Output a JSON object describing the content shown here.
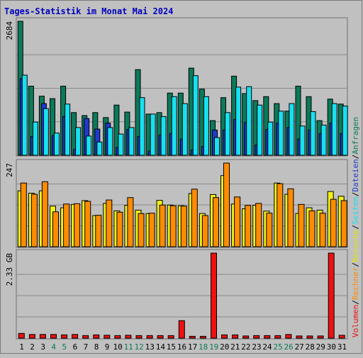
{
  "chart_data": {
    "type": "bar",
    "title": "Tages-Statistik im Monat Mai 2024",
    "x": [
      "1",
      "2",
      "3",
      "4",
      "5",
      "6",
      "7",
      "8",
      "9",
      "10",
      "11",
      "12",
      "13",
      "14",
      "15",
      "16",
      "17",
      "18",
      "19",
      "20",
      "21",
      "22",
      "23",
      "24",
      "25",
      "26",
      "27",
      "28",
      "29",
      "30",
      "31"
    ],
    "weekend_days": [
      "4",
      "5",
      "11",
      "12",
      "18",
      "19",
      "25",
      "26"
    ],
    "panels": [
      {
        "name": "requests",
        "max_label": "2684",
        "ylim": [
          0,
          2684
        ],
        "grid": true,
        "series": [
          {
            "name": "Anfragen",
            "color": "#0b7a5a",
            "values": [
              2684,
              1385,
              1185,
              1135,
              1385,
              855,
              795,
              855,
              755,
              1005,
              865,
              1715,
              825,
              855,
              1245,
              1245,
              1745,
              1325,
              695,
              1155,
              1585,
              1235,
              1095,
              1175,
              1035,
              885,
              1385,
              1175,
              695,
              1125,
              1025
            ]
          },
          {
            "name": "Dateien",
            "color": "#1f39cc",
            "values": [
              1535,
              375,
              1035,
              395,
              775,
              115,
              735,
              525,
              645,
              155,
              515,
              375,
              85,
              405,
              435,
              325,
              105,
              175,
              505,
              505,
              715,
              655,
              205,
              515,
              645,
              555,
              325,
              505,
              435,
              645,
              435
            ]
          },
          {
            "name": "Seiten",
            "color": "#18e0f0",
            "values": [
              1605,
              665,
              935,
              445,
              1025,
              555,
              385,
              265,
              555,
              425,
              555,
              1155,
              825,
              775,
              1175,
              1035,
              1595,
              1175,
              355,
              855,
              1365,
              1375,
              1005,
              665,
              885,
              1035,
              585,
              875,
              605,
              1035,
              985
            ]
          }
        ]
      },
      {
        "name": "visits",
        "max_label": "247",
        "ylim": [
          0,
          247
        ],
        "grid": true,
        "series": [
          {
            "name": "Besuche",
            "color": "#f0f018",
            "values": [
              165,
              158,
              165,
              120,
              115,
              125,
              136,
              92,
              128,
              106,
              122,
              108,
              98,
              137,
              123,
              121,
              157,
              98,
              154,
              210,
              126,
              112,
              122,
              105,
              188,
              155,
              98,
              115,
              108,
              163,
              149
            ]
          },
          {
            "name": "Rechner",
            "color": "#ff8c00",
            "values": [
              188,
              155,
              192,
              103,
              126,
              127,
              134,
              93,
              138,
              102,
              145,
              98,
              99,
              123,
              121,
              120,
              170,
              92,
              145,
              247,
              147,
              122,
              128,
              99,
              186,
              171,
              125,
              106,
              99,
              140,
              136
            ]
          }
        ]
      },
      {
        "name": "volume",
        "max_label": "2.33 GB",
        "ylim": [
          0,
          2.33
        ],
        "unit": "GB",
        "grid": true,
        "series": [
          {
            "name": "Volumen",
            "color": "#ee1111",
            "values": [
              0.13,
              0.1,
              0.1,
              0.1,
              0.09,
              0.1,
              0.07,
              0.09,
              0.08,
              0.07,
              0.08,
              0.07,
              0.07,
              0.07,
              0.07,
              0.48,
              0.05,
              0.05,
              2.33,
              0.09,
              0.09,
              0.06,
              0.07,
              0.07,
              0.07,
              0.1,
              0.06,
              0.06,
              0.06,
              2.33,
              0.08
            ]
          }
        ]
      }
    ],
    "right_legend": [
      {
        "text": "Volumen",
        "color": "#ee1111"
      },
      {
        "text": "/",
        "color": "#000000"
      },
      {
        "text": "Rechner",
        "color": "#ff8c00"
      },
      {
        "text": "/",
        "color": "#000000"
      },
      {
        "text": "Besuche",
        "color": "#e0e010"
      },
      {
        "text": "/",
        "color": "#000000"
      },
      {
        "text": "Seiten",
        "color": "#18e0f0"
      },
      {
        "text": "/",
        "color": "#000000"
      },
      {
        "text": "Dateien",
        "color": "#1f39cc"
      },
      {
        "text": "/",
        "color": "#000000"
      },
      {
        "text": "Anfragen",
        "color": "#0b7a5a"
      }
    ],
    "colors": {
      "background": "#c0c0c0",
      "title": "#0000c0",
      "weekday_label": "#000000",
      "weekend_label": "#0b7a5a"
    }
  }
}
